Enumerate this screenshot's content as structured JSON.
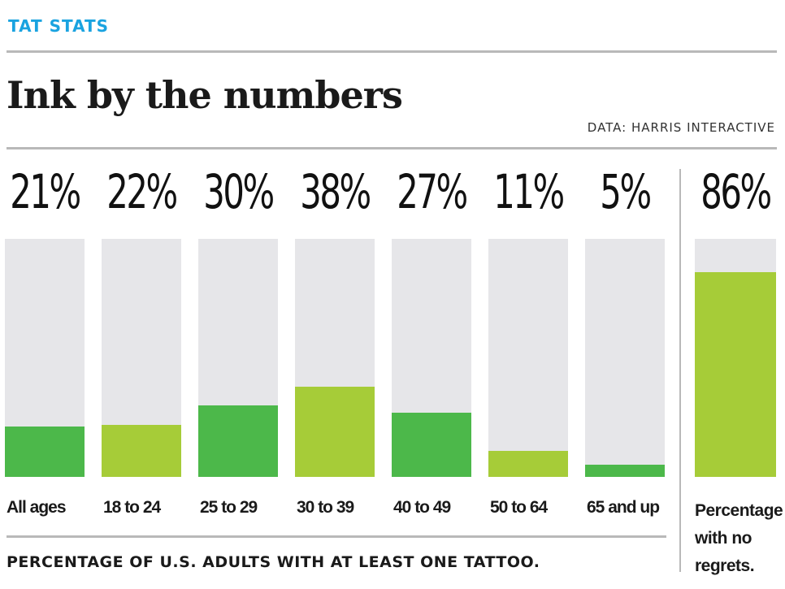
{
  "header": {
    "kicker": "TAT STATS",
    "title": "Ink by the numbers",
    "source": "DATA: HARRIS INTERACTIVE"
  },
  "colors": {
    "kicker": "#1aa3e0",
    "dark_green": "#4cb84a",
    "light_green": "#a6cc38",
    "track": "#e6e6e9"
  },
  "chart_data": [
    {
      "type": "bar",
      "caption": "PERCENTAGE OF U.S. ADULTS WITH AT LEAST ONE TATTOO.",
      "categories": [
        "All ages",
        "18 to 24",
        "25 to 29",
        "30 to 39",
        "40 to 49",
        "50 to 64",
        "65 and up"
      ],
      "values": [
        21,
        22,
        30,
        38,
        27,
        11,
        5
      ],
      "value_labels": [
        "21%",
        "22%",
        "30%",
        "38%",
        "27%",
        "11%",
        "5%"
      ],
      "ylim": [
        0,
        100
      ],
      "bar_colors": [
        "#4cb84a",
        "#a6cc38",
        "#4cb84a",
        "#a6cc38",
        "#4cb84a",
        "#a6cc38",
        "#4cb84a"
      ]
    },
    {
      "type": "bar",
      "categories": [
        "Percentage with no regrets."
      ],
      "values": [
        86
      ],
      "value_labels": [
        "86%"
      ],
      "ylim": [
        0,
        100
      ],
      "bar_colors": [
        "#a6cc38"
      ]
    }
  ]
}
